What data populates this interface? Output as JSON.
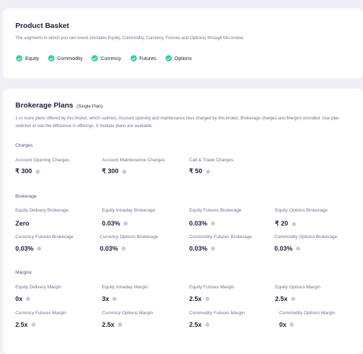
{
  "product_basket": {
    "title": "Product Basket",
    "description": "The segments in which you can invest (includes Equity, Commodity, Currency, Futures and Options) through this broker",
    "segments": [
      {
        "label": "Equity",
        "icon": "check-circle-icon"
      },
      {
        "label": "Commodity",
        "icon": "check-circle-icon"
      },
      {
        "label": "Currency",
        "icon": "check-circle-icon"
      },
      {
        "label": "Futures",
        "icon": "check-circle-icon"
      },
      {
        "label": "Options",
        "icon": "check-circle-icon"
      }
    ],
    "accent_color": "#3cc7a0"
  },
  "brokerage_plans": {
    "title": "Brokerage Plans",
    "plan_type": "(Single Plan)",
    "description": "1 or more plans offered by this broker, which outlines, Account opening and maintenance fees charged by this broker, Brokerage charges and Margins provided. Use plan switcher to see the difference in offerings, if multiple plans are available.",
    "charges": {
      "heading": "Charges",
      "items": [
        {
          "label": "Account Opening Charges",
          "value": "₹ 300"
        },
        {
          "label": "Account Maintenance Charges",
          "value": "₹ 300"
        },
        {
          "label": "Call & Trade Charges",
          "value": "₹ 50"
        }
      ]
    },
    "brokerage": {
      "heading": "Brokerage",
      "items": [
        {
          "label": "Equity Delivery Brokerage",
          "value": "Zero"
        },
        {
          "label": "Equity Intraday Brokerage",
          "value": "0.03%"
        },
        {
          "label": "Equity Futures Brokerage",
          "value": "0.03%"
        },
        {
          "label": "Equity Options Brokerage",
          "value": "₹ 20"
        },
        {
          "label": "Currency Futures Brokerage",
          "value": "0.03%"
        },
        {
          "label": "Currency Options Brokerage",
          "value": "0.03%"
        },
        {
          "label": "Commodity Futures Brokerage",
          "value": "0.03%"
        },
        {
          "label": "Commodity Options Brokerage",
          "value": "0.03%"
        }
      ]
    },
    "margins": {
      "heading": "Margins",
      "items": [
        {
          "label": "Equity Delivery Margin",
          "value": "0x"
        },
        {
          "label": "Equity Intraday Margin",
          "value": "3x"
        },
        {
          "label": "Equity Futures Margin",
          "value": "2.5x"
        },
        {
          "label": "Equity Options Margin",
          "value": "2.5x"
        },
        {
          "label": "Currency Futures Margin",
          "value": "2.5x"
        },
        {
          "label": "Currency Options Margin",
          "value": "2.5x"
        },
        {
          "label": "Commodity Futures Margin",
          "value": "2.5x"
        },
        {
          "label": "Commodity Options Margin",
          "value": "0x"
        }
      ]
    }
  }
}
